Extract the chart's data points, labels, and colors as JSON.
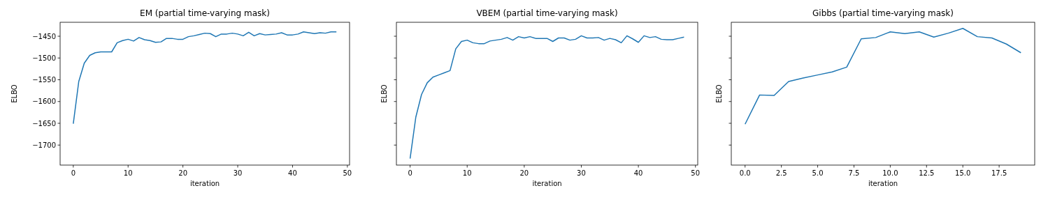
{
  "chart_data": [
    {
      "type": "line",
      "title": "EM (partial time-varying mask)",
      "xlabel": "iteration",
      "ylabel": "ELBO",
      "color": "#1f77b4",
      "x": [
        0,
        1,
        2,
        3,
        4,
        5,
        6,
        7,
        8,
        9,
        10,
        11,
        12,
        13,
        14,
        15,
        16,
        17,
        18,
        19,
        20,
        21,
        22,
        23,
        24,
        25,
        26,
        27,
        28,
        29,
        30,
        31,
        32,
        33,
        34,
        35,
        36,
        37,
        38,
        39,
        40,
        41,
        42,
        43,
        44,
        45,
        46,
        47,
        48
      ],
      "values": [
        -1651,
        -1554,
        -1512,
        -1494,
        -1488,
        -1486,
        -1486,
        -1486,
        -1465,
        -1460,
        -1457,
        -1461,
        -1453,
        -1458,
        -1460,
        -1464,
        -1463,
        -1455,
        -1455,
        -1457,
        -1457,
        -1451,
        -1449,
        -1446,
        -1443,
        -1444,
        -1451,
        -1445,
        -1445,
        -1443,
        -1445,
        -1449,
        -1441,
        -1449,
        -1444,
        -1447,
        -1446,
        -1445,
        -1442,
        -1447,
        -1447,
        -1445,
        -1440,
        -1442,
        -1444,
        -1442,
        -1443,
        -1440,
        -1440
      ],
      "xlim": [
        -2.4,
        50.4
      ],
      "xticks": [
        0,
        10,
        20,
        30,
        40,
        50
      ],
      "ylim": [
        -1746,
        -1418
      ],
      "yticks": [
        {
          "value": -1700,
          "label": "−1700"
        },
        {
          "value": -1650,
          "label": "−1650"
        },
        {
          "value": -1600,
          "label": "−1600"
        },
        {
          "value": -1550,
          "label": "−1550"
        },
        {
          "value": -1500,
          "label": "−1500"
        },
        {
          "value": -1450,
          "label": "−1450"
        }
      ]
    },
    {
      "type": "line",
      "title": "VBEM (partial time-varying mask)",
      "xlabel": "iteration",
      "ylabel": "ELBO",
      "color": "#1f77b4",
      "tick_labels": "x",
      "x": [
        0,
        1,
        2,
        3,
        4,
        5,
        6,
        7,
        8,
        9,
        10,
        11,
        12,
        13,
        14,
        15,
        16,
        17,
        18,
        19,
        20,
        21,
        22,
        23,
        24,
        25,
        26,
        27,
        28,
        29,
        30,
        31,
        32,
        33,
        34,
        35,
        36,
        37,
        38,
        39,
        40,
        41,
        42,
        43,
        44,
        45,
        46,
        47,
        48
      ],
      "values": [
        -1731,
        -1636,
        -1584,
        -1557,
        -1544,
        -1539,
        -1534,
        -1529,
        -1479,
        -1462,
        -1459,
        -1465,
        -1467,
        -1467,
        -1461,
        -1459,
        -1457,
        -1453,
        -1459,
        -1451,
        -1454,
        -1451,
        -1455,
        -1455,
        -1455,
        -1462,
        -1454,
        -1454,
        -1459,
        -1457,
        -1449,
        -1454,
        -1454,
        -1453,
        -1459,
        -1455,
        -1458,
        -1465,
        -1449,
        -1456,
        -1464,
        -1449,
        -1453,
        -1451,
        -1457,
        -1458,
        -1458,
        -1455,
        -1452
      ],
      "xlim": [
        -2.4,
        50.4
      ],
      "xticks": [
        0,
        10,
        20,
        30,
        40,
        50
      ],
      "ylim": [
        -1746,
        -1418
      ],
      "yticks": [
        {
          "value": -1700,
          "label": null
        },
        {
          "value": -1650,
          "label": null
        },
        {
          "value": -1600,
          "label": null
        },
        {
          "value": -1550,
          "label": null
        },
        {
          "value": -1500,
          "label": null
        },
        {
          "value": -1450,
          "label": null
        }
      ]
    },
    {
      "type": "line",
      "title": "Gibbs (partial time-varying mask)",
      "xlabel": "iteration",
      "ylabel": "ELBO",
      "color": "#1f77b4",
      "tick_labels": "x",
      "x": [
        0,
        1,
        2,
        3,
        4,
        5,
        6,
        7,
        8,
        9,
        10,
        11,
        12,
        13,
        14,
        15,
        16,
        17,
        18,
        19
      ],
      "values": [
        -1652,
        -1585,
        -1586,
        -1554,
        -1546,
        -1539,
        -1532,
        -1521,
        -1456,
        -1453,
        -1440,
        -1444,
        -1440,
        -1452,
        -1443,
        -1432,
        -1451,
        -1454,
        -1468,
        -1488
      ],
      "xlim": [
        -0.95,
        19.95
      ],
      "xticks": [
        {
          "value": 0,
          "label": "0.0"
        },
        2.5,
        {
          "value": 5,
          "label": "5.0"
        },
        7.5,
        {
          "value": 10,
          "label": "10.0"
        },
        12.5,
        {
          "value": 15,
          "label": "15.0"
        },
        17.5
      ],
      "ylim": [
        -1746,
        -1418
      ],
      "yticks": [
        {
          "value": -1700,
          "label": null
        },
        {
          "value": -1650,
          "label": null
        },
        {
          "value": -1600,
          "label": null
        },
        {
          "value": -1550,
          "label": null
        },
        {
          "value": -1500,
          "label": null
        },
        {
          "value": -1450,
          "label": null
        }
      ]
    }
  ]
}
